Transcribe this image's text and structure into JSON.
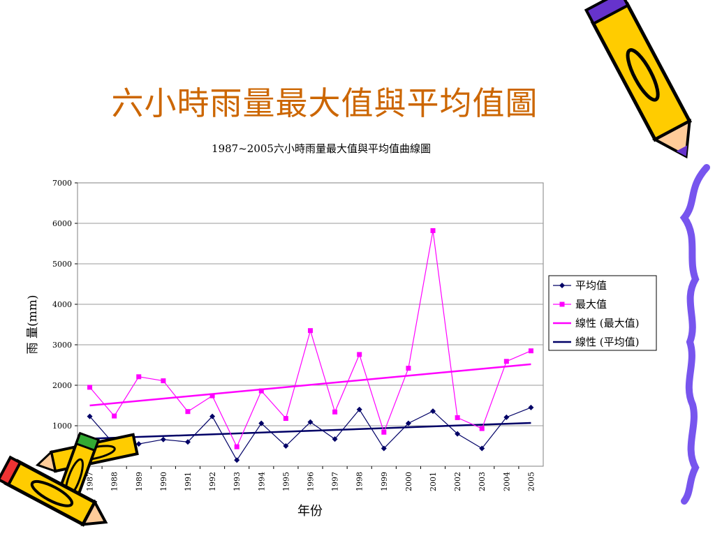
{
  "slide": {
    "title": "六小時雨量最大值與平均值圖"
  },
  "colors": {
    "title": "#cc6600",
    "max_series": "#ff00ff",
    "avg_series": "#000066",
    "grid": "#999999"
  },
  "decorations": [
    "pencil-icon",
    "crayon-icon",
    "squiggle-line"
  ],
  "chart_data": {
    "type": "line",
    "title": "1987~2005六小時雨量最大值與平均值曲線圖",
    "xlabel": "年份",
    "ylabel": "雨 量(mm)",
    "ylim": [
      0,
      7000
    ],
    "yticks": [
      "0",
      "1000",
      "2000",
      "3000",
      "4000",
      "5000",
      "6000",
      "7000"
    ],
    "categories": [
      "1987",
      "1988",
      "1989",
      "1990",
      "1991",
      "1992",
      "1993",
      "1994",
      "1995",
      "1996",
      "1997",
      "1998",
      "1999",
      "2000",
      "2001",
      "2002",
      "2003",
      "2004",
      "2005"
    ],
    "series": [
      {
        "name": "平均值",
        "color": "#000066",
        "marker": "diamond",
        "values": [
          1230,
          540,
          550,
          660,
          600,
          1230,
          150,
          1060,
          500,
          1090,
          670,
          1400,
          440,
          1060,
          1360,
          800,
          440,
          1210,
          1450
        ]
      },
      {
        "name": "最大值",
        "color": "#ff00ff",
        "marker": "square",
        "values": [
          1950,
          1240,
          2210,
          2110,
          1350,
          1740,
          480,
          1860,
          1180,
          3350,
          1340,
          2760,
          840,
          2420,
          5820,
          1200,
          930,
          2590,
          2850
        ]
      }
    ],
    "trendlines": [
      {
        "name": "線性 (最大值)",
        "color": "#ff00ff",
        "from": 1500,
        "to": 2520
      },
      {
        "name": "線性 (平均值)",
        "color": "#000066",
        "from": 680,
        "to": 1070
      }
    ],
    "legend": "right",
    "grid": true
  }
}
